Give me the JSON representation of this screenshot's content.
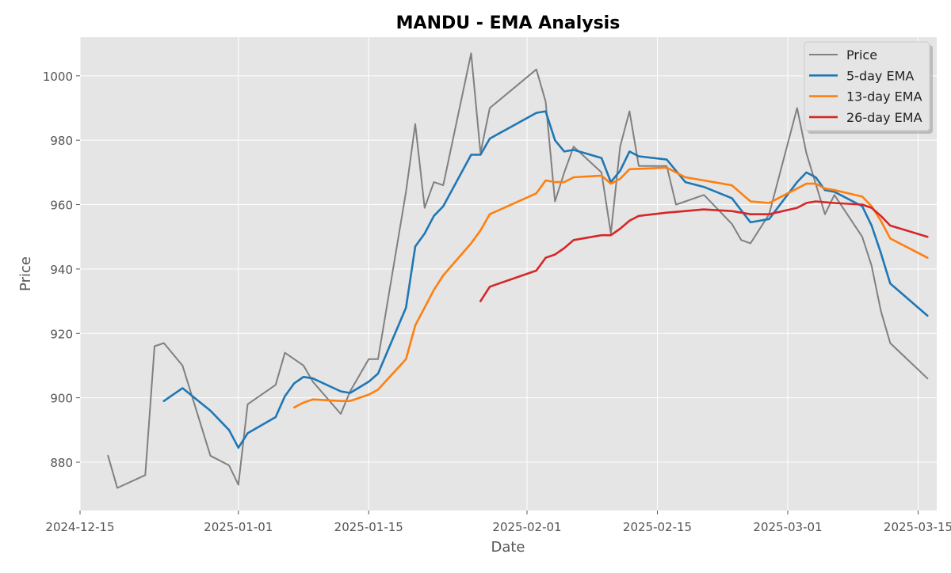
{
  "chart_data": {
    "type": "line",
    "title": "MANDU - EMA Analysis",
    "xlabel": "Date",
    "ylabel": "Price",
    "x_axis_type": "date",
    "xlim": [
      "2024-12-15",
      "2025-03-17"
    ],
    "ylim": [
      865,
      1012
    ],
    "x_ticks": [
      "2024-12-15",
      "2025-01-01",
      "2025-01-15",
      "2025-02-01",
      "2025-02-15",
      "2025-03-01",
      "2025-03-15"
    ],
    "x_tick_labels": [
      "2024-12-15",
      "2025-01-01",
      "2025-01-15",
      "2025-02-01",
      "2025-02-15",
      "2025-03-01",
      "2025-03-15"
    ],
    "y_ticks": [
      880,
      900,
      920,
      940,
      960,
      980,
      1000
    ],
    "y_tick_labels": [
      "880",
      "900",
      "920",
      "940",
      "960",
      "980",
      "1000"
    ],
    "grid": true,
    "legend_position": "top-right",
    "series": [
      {
        "name": "Price",
        "color": "#808080",
        "points": [
          [
            "2024-12-18",
            882
          ],
          [
            "2024-12-19",
            872
          ],
          [
            "2024-12-22",
            876
          ],
          [
            "2024-12-23",
            916
          ],
          [
            "2024-12-24",
            917
          ],
          [
            "2024-12-26",
            910
          ],
          [
            "2024-12-29",
            882
          ],
          [
            "2024-12-31",
            879
          ],
          [
            "2025-01-01",
            873
          ],
          [
            "2025-01-02",
            898
          ],
          [
            "2025-01-05",
            904
          ],
          [
            "2025-01-06",
            914
          ],
          [
            "2025-01-08",
            910
          ],
          [
            "2025-01-09",
            905
          ],
          [
            "2025-01-12",
            895
          ],
          [
            "2025-01-13",
            902
          ],
          [
            "2025-01-15",
            912
          ],
          [
            "2025-01-16",
            912
          ],
          [
            "2025-01-19",
            964
          ],
          [
            "2025-01-20",
            985
          ],
          [
            "2025-01-21",
            959
          ],
          [
            "2025-01-22",
            967
          ],
          [
            "2025-01-23",
            966
          ],
          [
            "2025-01-26",
            1007
          ],
          [
            "2025-01-27",
            976
          ],
          [
            "2025-01-28",
            990
          ],
          [
            "2025-02-02",
            1002
          ],
          [
            "2025-02-03",
            992
          ],
          [
            "2025-02-04",
            961
          ],
          [
            "2025-02-05",
            970
          ],
          [
            "2025-02-06",
            978
          ],
          [
            "2025-02-09",
            970
          ],
          [
            "2025-02-10",
            951
          ],
          [
            "2025-02-11",
            978
          ],
          [
            "2025-02-12",
            989
          ],
          [
            "2025-02-13",
            972
          ],
          [
            "2025-02-16",
            972
          ],
          [
            "2025-02-17",
            960
          ],
          [
            "2025-02-18",
            961
          ],
          [
            "2025-02-20",
            963
          ],
          [
            "2025-02-23",
            954
          ],
          [
            "2025-02-24",
            949
          ],
          [
            "2025-02-25",
            948
          ],
          [
            "2025-02-27",
            957
          ],
          [
            "2025-03-02",
            990
          ],
          [
            "2025-03-03",
            976
          ],
          [
            "2025-03-05",
            957
          ],
          [
            "2025-03-06",
            963
          ],
          [
            "2025-03-09",
            950
          ],
          [
            "2025-03-10",
            941
          ],
          [
            "2025-03-11",
            927
          ],
          [
            "2025-03-12",
            917
          ],
          [
            "2025-03-16",
            906
          ]
        ]
      },
      {
        "name": "5-day EMA",
        "color": "#1f77b4",
        "points": [
          [
            "2024-12-24",
            899
          ],
          [
            "2024-12-26",
            903
          ],
          [
            "2024-12-29",
            896
          ],
          [
            "2024-12-31",
            890
          ],
          [
            "2025-01-01",
            884.5
          ],
          [
            "2025-01-02",
            889
          ],
          [
            "2025-01-05",
            894
          ],
          [
            "2025-01-06",
            900.5
          ],
          [
            "2025-01-07",
            904.5
          ],
          [
            "2025-01-08",
            906.5
          ],
          [
            "2025-01-09",
            906
          ],
          [
            "2025-01-12",
            902
          ],
          [
            "2025-01-13",
            901.5
          ],
          [
            "2025-01-15",
            905
          ],
          [
            "2025-01-16",
            907.5
          ],
          [
            "2025-01-19",
            928
          ],
          [
            "2025-01-20",
            947
          ],
          [
            "2025-01-21",
            951
          ],
          [
            "2025-01-22",
            956.5
          ],
          [
            "2025-01-23",
            959.5
          ],
          [
            "2025-01-26",
            975.5
          ],
          [
            "2025-01-27",
            975.5
          ],
          [
            "2025-01-28",
            980.5
          ],
          [
            "2025-02-02",
            988.5
          ],
          [
            "2025-02-03",
            989
          ],
          [
            "2025-02-04",
            980
          ],
          [
            "2025-02-05",
            976.5
          ],
          [
            "2025-02-06",
            977
          ],
          [
            "2025-02-09",
            974.5
          ],
          [
            "2025-02-10",
            967
          ],
          [
            "2025-02-11",
            970.5
          ],
          [
            "2025-02-12",
            976.5
          ],
          [
            "2025-02-13",
            975
          ],
          [
            "2025-02-16",
            974
          ],
          [
            "2025-02-18",
            967
          ],
          [
            "2025-02-20",
            965.5
          ],
          [
            "2025-02-23",
            962
          ],
          [
            "2025-02-25",
            954.5
          ],
          [
            "2025-02-27",
            955.5
          ],
          [
            "2025-03-02",
            967
          ],
          [
            "2025-03-03",
            970
          ],
          [
            "2025-03-04",
            968.5
          ],
          [
            "2025-03-05",
            964.5
          ],
          [
            "2025-03-06",
            964
          ],
          [
            "2025-03-09",
            959.5
          ],
          [
            "2025-03-10",
            953.5
          ],
          [
            "2025-03-11",
            945
          ],
          [
            "2025-03-12",
            935.5
          ],
          [
            "2025-03-16",
            925.5
          ]
        ]
      },
      {
        "name": "13-day EMA",
        "color": "#ff7f0e",
        "points": [
          [
            "2025-01-07",
            897
          ],
          [
            "2025-01-08",
            898.5
          ],
          [
            "2025-01-09",
            899.5
          ],
          [
            "2025-01-12",
            899
          ],
          [
            "2025-01-13",
            899
          ],
          [
            "2025-01-15",
            901
          ],
          [
            "2025-01-16",
            902.5
          ],
          [
            "2025-01-19",
            912
          ],
          [
            "2025-01-20",
            922.5
          ],
          [
            "2025-01-21",
            928
          ],
          [
            "2025-01-22",
            933.5
          ],
          [
            "2025-01-23",
            938
          ],
          [
            "2025-01-26",
            948
          ],
          [
            "2025-01-27",
            952
          ],
          [
            "2025-01-28",
            957
          ],
          [
            "2025-02-02",
            963.5
          ],
          [
            "2025-02-03",
            967.5
          ],
          [
            "2025-02-04",
            967
          ],
          [
            "2025-02-05",
            967
          ],
          [
            "2025-02-06",
            968.5
          ],
          [
            "2025-02-09",
            969
          ],
          [
            "2025-02-10",
            966.5
          ],
          [
            "2025-02-11",
            968
          ],
          [
            "2025-02-12",
            971
          ],
          [
            "2025-02-16",
            971.5
          ],
          [
            "2025-02-18",
            968.5
          ],
          [
            "2025-02-20",
            967.5
          ],
          [
            "2025-02-23",
            966
          ],
          [
            "2025-02-25",
            961
          ],
          [
            "2025-02-27",
            960.5
          ],
          [
            "2025-03-02",
            965
          ],
          [
            "2025-03-03",
            966.5
          ],
          [
            "2025-03-04",
            966.5
          ],
          [
            "2025-03-05",
            965
          ],
          [
            "2025-03-06",
            964.5
          ],
          [
            "2025-03-09",
            962.5
          ],
          [
            "2025-03-10",
            959.5
          ],
          [
            "2025-03-11",
            955
          ],
          [
            "2025-03-12",
            949.5
          ],
          [
            "2025-03-16",
            943.5
          ]
        ]
      },
      {
        "name": "26-day EMA",
        "color": "#d62728",
        "points": [
          [
            "2025-01-27",
            930
          ],
          [
            "2025-01-28",
            934.5
          ],
          [
            "2025-02-02",
            939.5
          ],
          [
            "2025-02-03",
            943.5
          ],
          [
            "2025-02-04",
            944.5
          ],
          [
            "2025-02-05",
            946.5
          ],
          [
            "2025-02-06",
            949
          ],
          [
            "2025-02-09",
            950.5
          ],
          [
            "2025-02-10",
            950.5
          ],
          [
            "2025-02-11",
            952.5
          ],
          [
            "2025-02-12",
            955
          ],
          [
            "2025-02-13",
            956.5
          ],
          [
            "2025-02-16",
            957.5
          ],
          [
            "2025-02-18",
            958
          ],
          [
            "2025-02-20",
            958.5
          ],
          [
            "2025-02-23",
            958
          ],
          [
            "2025-02-24",
            957.5
          ],
          [
            "2025-02-25",
            957
          ],
          [
            "2025-02-27",
            957
          ],
          [
            "2025-03-02",
            959
          ],
          [
            "2025-03-03",
            960.5
          ],
          [
            "2025-03-04",
            961
          ],
          [
            "2025-03-06",
            960.5
          ],
          [
            "2025-03-09",
            960
          ],
          [
            "2025-03-10",
            959
          ],
          [
            "2025-03-11",
            956.5
          ],
          [
            "2025-03-12",
            953.5
          ],
          [
            "2025-03-16",
            950
          ]
        ]
      }
    ]
  }
}
